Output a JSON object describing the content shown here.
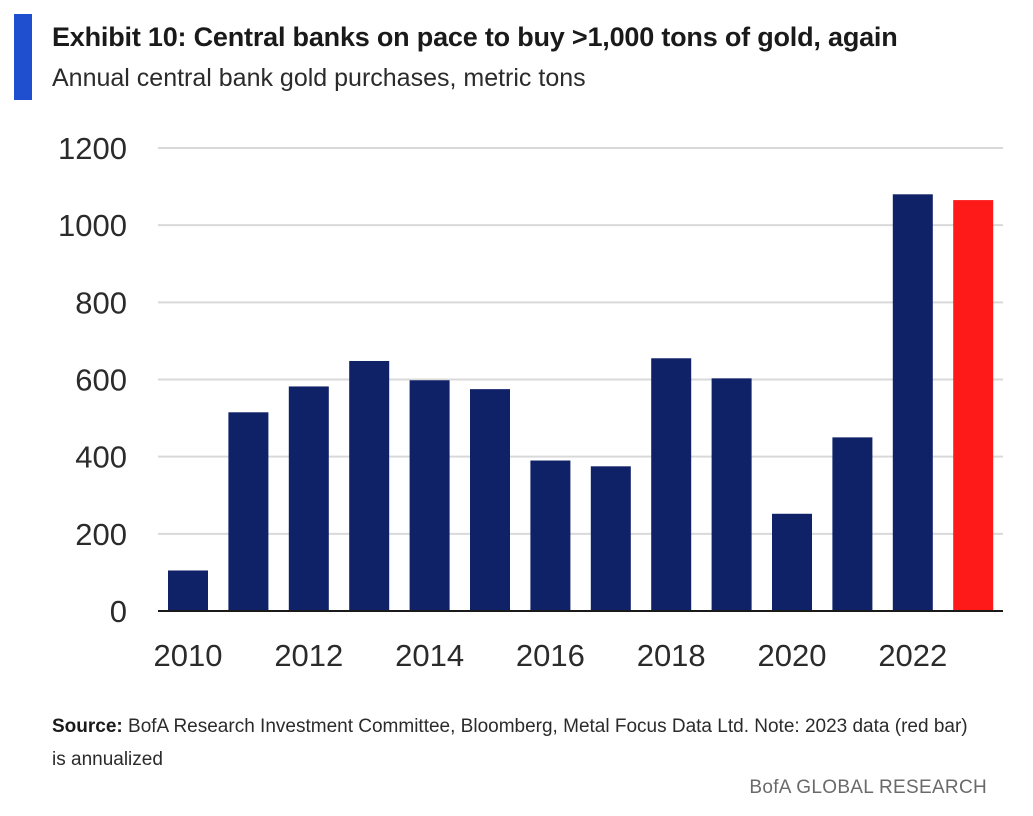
{
  "header": {
    "title": "Exhibit 10: Central banks on pace to buy >1,000 tons of gold, again",
    "subtitle": "Annual central bank gold purchases, metric tons"
  },
  "footer": {
    "source_label": "Source:",
    "source_text": "BofA Research Investment Committee, Bloomberg, Metal Focus Data Ltd. Note: 2023 data (red bar) is annualized",
    "brand": "BofA GLOBAL RESEARCH"
  },
  "colors": {
    "accent": "#1f4fcf",
    "bar": "#0f2167",
    "highlight": "#ff1a1a",
    "grid": "#d9d9d9",
    "axis": "#1a1a1a"
  },
  "chart_data": {
    "type": "bar",
    "title": "Exhibit 10: Central banks on pace to buy >1,000 tons of gold, again",
    "subtitle": "Annual central bank gold purchases, metric tons",
    "xlabel": "",
    "ylabel": "",
    "categories": [
      "2010",
      "2011",
      "2012",
      "2013",
      "2014",
      "2015",
      "2016",
      "2017",
      "2018",
      "2019",
      "2020",
      "2021",
      "2022",
      "2023"
    ],
    "values": [
      105,
      515,
      582,
      648,
      598,
      575,
      390,
      375,
      655,
      603,
      252,
      450,
      1080,
      1065
    ],
    "highlight_categories": [
      "2023"
    ],
    "x_tick_labels": [
      "2010",
      "2012",
      "2014",
      "2016",
      "2018",
      "2020",
      "2022"
    ],
    "ylim": [
      0,
      1200
    ],
    "y_ticks": [
      0,
      200,
      400,
      600,
      800,
      1000,
      1200
    ],
    "grid": true,
    "legend": "none"
  }
}
